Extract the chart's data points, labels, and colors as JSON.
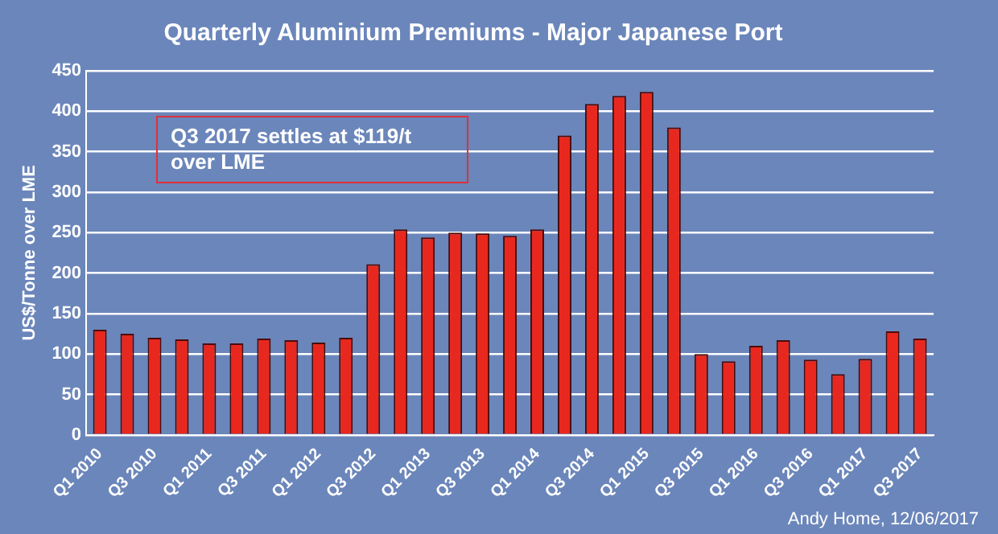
{
  "chart_data": {
    "type": "bar",
    "title": "Quarterly Aluminium Premiums - Major Japanese Port",
    "ylabel": "US$/Tonne over LME",
    "categories": [
      "Q1 2010",
      null,
      "Q3 2010",
      null,
      "Q1 2011",
      null,
      "Q3 2011",
      null,
      "Q1 2012",
      null,
      "Q3 2012",
      null,
      "Q1 2013",
      null,
      "Q3 2013",
      null,
      "Q1 2014",
      null,
      "Q3 2014",
      null,
      "Q1 2015",
      null,
      "Q3 2015",
      null,
      "Q1 2016",
      null,
      "Q3 2016",
      null,
      "Q1 2017",
      null,
      "Q3 2017"
    ],
    "values": [
      130,
      125,
      120,
      118,
      113,
      113,
      119,
      117,
      114,
      120,
      211,
      254,
      244,
      250,
      249,
      246,
      254,
      370,
      409,
      419,
      424,
      380,
      100,
      91,
      110,
      117,
      93,
      75,
      94,
      128,
      119
    ],
    "color": "#e8281e",
    "ylim": [
      0,
      450
    ],
    "yticks": [
      0,
      50,
      100,
      150,
      200,
      250,
      300,
      350,
      400,
      450
    ],
    "grid": "y",
    "legend": false,
    "annotations": [
      "Q3 2017 settles at $119/t over LME",
      "Andy Home, 12/06/2017"
    ]
  }
}
